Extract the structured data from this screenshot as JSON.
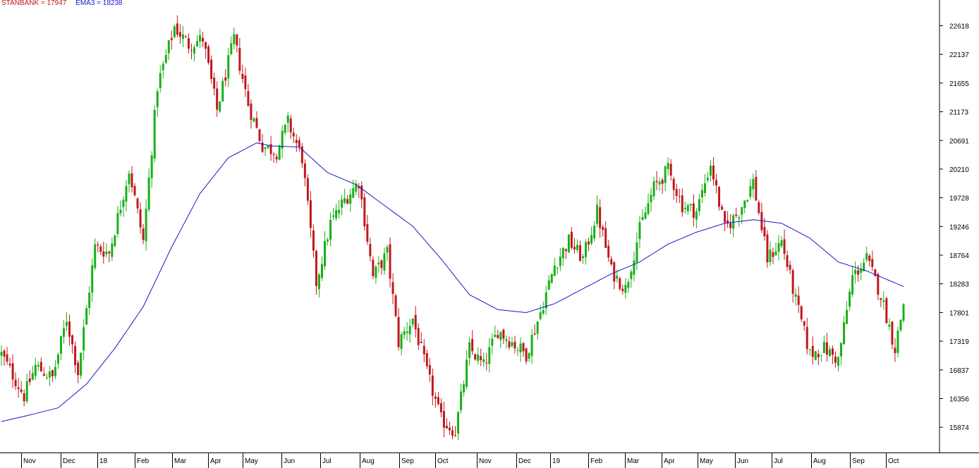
{
  "legend": {
    "price_label": "STANBANK = 17947",
    "ema_label": "EMA3 = 18238",
    "price_color": "#c0181c",
    "ema_color": "#1818c8"
  },
  "colors": {
    "up": "#18b018",
    "down": "#c0181c",
    "ema": "#1818c8",
    "axis": "#000000"
  },
  "chart_data": {
    "type": "candlestick",
    "ylim": [
      15450,
      23050
    ],
    "y_ticks": [
      15874,
      16356,
      16837,
      17319,
      17801,
      18283,
      18764,
      19246,
      19728,
      20210,
      20691,
      21173,
      21655,
      22137,
      22618
    ],
    "x_ticks": [
      "Nov",
      "Dec",
      "18",
      "Feb",
      "Mar",
      "Apr",
      "May",
      "Jun",
      "Jul",
      "Aug",
      "Sep",
      "Oct",
      "Nov",
      "Dec",
      "19",
      "Feb",
      "Mar",
      "Apr",
      "May",
      "Jun",
      "Jul",
      "Aug",
      "Sep",
      "Oct"
    ],
    "price_key_points": [
      [
        0,
        17100
      ],
      [
        8,
        16400
      ],
      [
        12,
        16900
      ],
      [
        18,
        16700
      ],
      [
        23,
        17700
      ],
      [
        27,
        16800
      ],
      [
        33,
        18900
      ],
      [
        38,
        18800
      ],
      [
        45,
        20200
      ],
      [
        50,
        19000
      ],
      [
        55,
        21600
      ],
      [
        61,
        22600
      ],
      [
        66,
        22300
      ],
      [
        71,
        22400
      ],
      [
        76,
        21200
      ],
      [
        82,
        22400
      ],
      [
        87,
        21300
      ],
      [
        92,
        20600
      ],
      [
        97,
        20500
      ],
      [
        101,
        21000
      ],
      [
        106,
        20400
      ],
      [
        111,
        18300
      ],
      [
        116,
        19300
      ],
      [
        121,
        19700
      ],
      [
        126,
        20000
      ],
      [
        131,
        18400
      ],
      [
        136,
        18800
      ],
      [
        140,
        17300
      ],
      [
        145,
        17700
      ],
      [
        150,
        16800
      ],
      [
        155,
        16000
      ],
      [
        160,
        15800
      ],
      [
        165,
        17200
      ],
      [
        170,
        16900
      ],
      [
        175,
        17500
      ],
      [
        180,
        17300
      ],
      [
        185,
        17100
      ],
      [
        190,
        17800
      ],
      [
        195,
        18600
      ],
      [
        200,
        19000
      ],
      [
        205,
        18700
      ],
      [
        210,
        19500
      ],
      [
        215,
        18500
      ],
      [
        220,
        18200
      ],
      [
        225,
        19200
      ],
      [
        230,
        19900
      ],
      [
        235,
        20200
      ],
      [
        240,
        19600
      ],
      [
        245,
        19500
      ],
      [
        250,
        20300
      ],
      [
        255,
        19200
      ],
      [
        260,
        19500
      ],
      [
        265,
        20000
      ],
      [
        270,
        18700
      ],
      [
        275,
        19000
      ],
      [
        280,
        18000
      ],
      [
        285,
        17100
      ],
      [
        290,
        17200
      ],
      [
        295,
        17000
      ],
      [
        300,
        18400
      ],
      [
        305,
        18700
      ],
      [
        310,
        18100
      ],
      [
        315,
        17200
      ],
      [
        318,
        17947
      ]
    ],
    "ema_key_points": [
      [
        0,
        15970
      ],
      [
        10,
        16080
      ],
      [
        20,
        16200
      ],
      [
        30,
        16600
      ],
      [
        40,
        17200
      ],
      [
        50,
        17900
      ],
      [
        60,
        18900
      ],
      [
        70,
        19800
      ],
      [
        80,
        20400
      ],
      [
        90,
        20650
      ],
      [
        95,
        20600
      ],
      [
        105,
        20580
      ],
      [
        115,
        20150
      ],
      [
        125,
        19950
      ],
      [
        135,
        19600
      ],
      [
        145,
        19250
      ],
      [
        155,
        18700
      ],
      [
        165,
        18100
      ],
      [
        175,
        17850
      ],
      [
        185,
        17800
      ],
      [
        195,
        17950
      ],
      [
        205,
        18200
      ],
      [
        215,
        18450
      ],
      [
        225,
        18650
      ],
      [
        235,
        18950
      ],
      [
        245,
        19150
      ],
      [
        255,
        19300
      ],
      [
        265,
        19360
      ],
      [
        275,
        19300
      ],
      [
        285,
        19050
      ],
      [
        295,
        18650
      ],
      [
        305,
        18500
      ],
      [
        318,
        18238
      ]
    ],
    "candle_count": 319,
    "title": "",
    "xlabel": "",
    "ylabel": ""
  }
}
